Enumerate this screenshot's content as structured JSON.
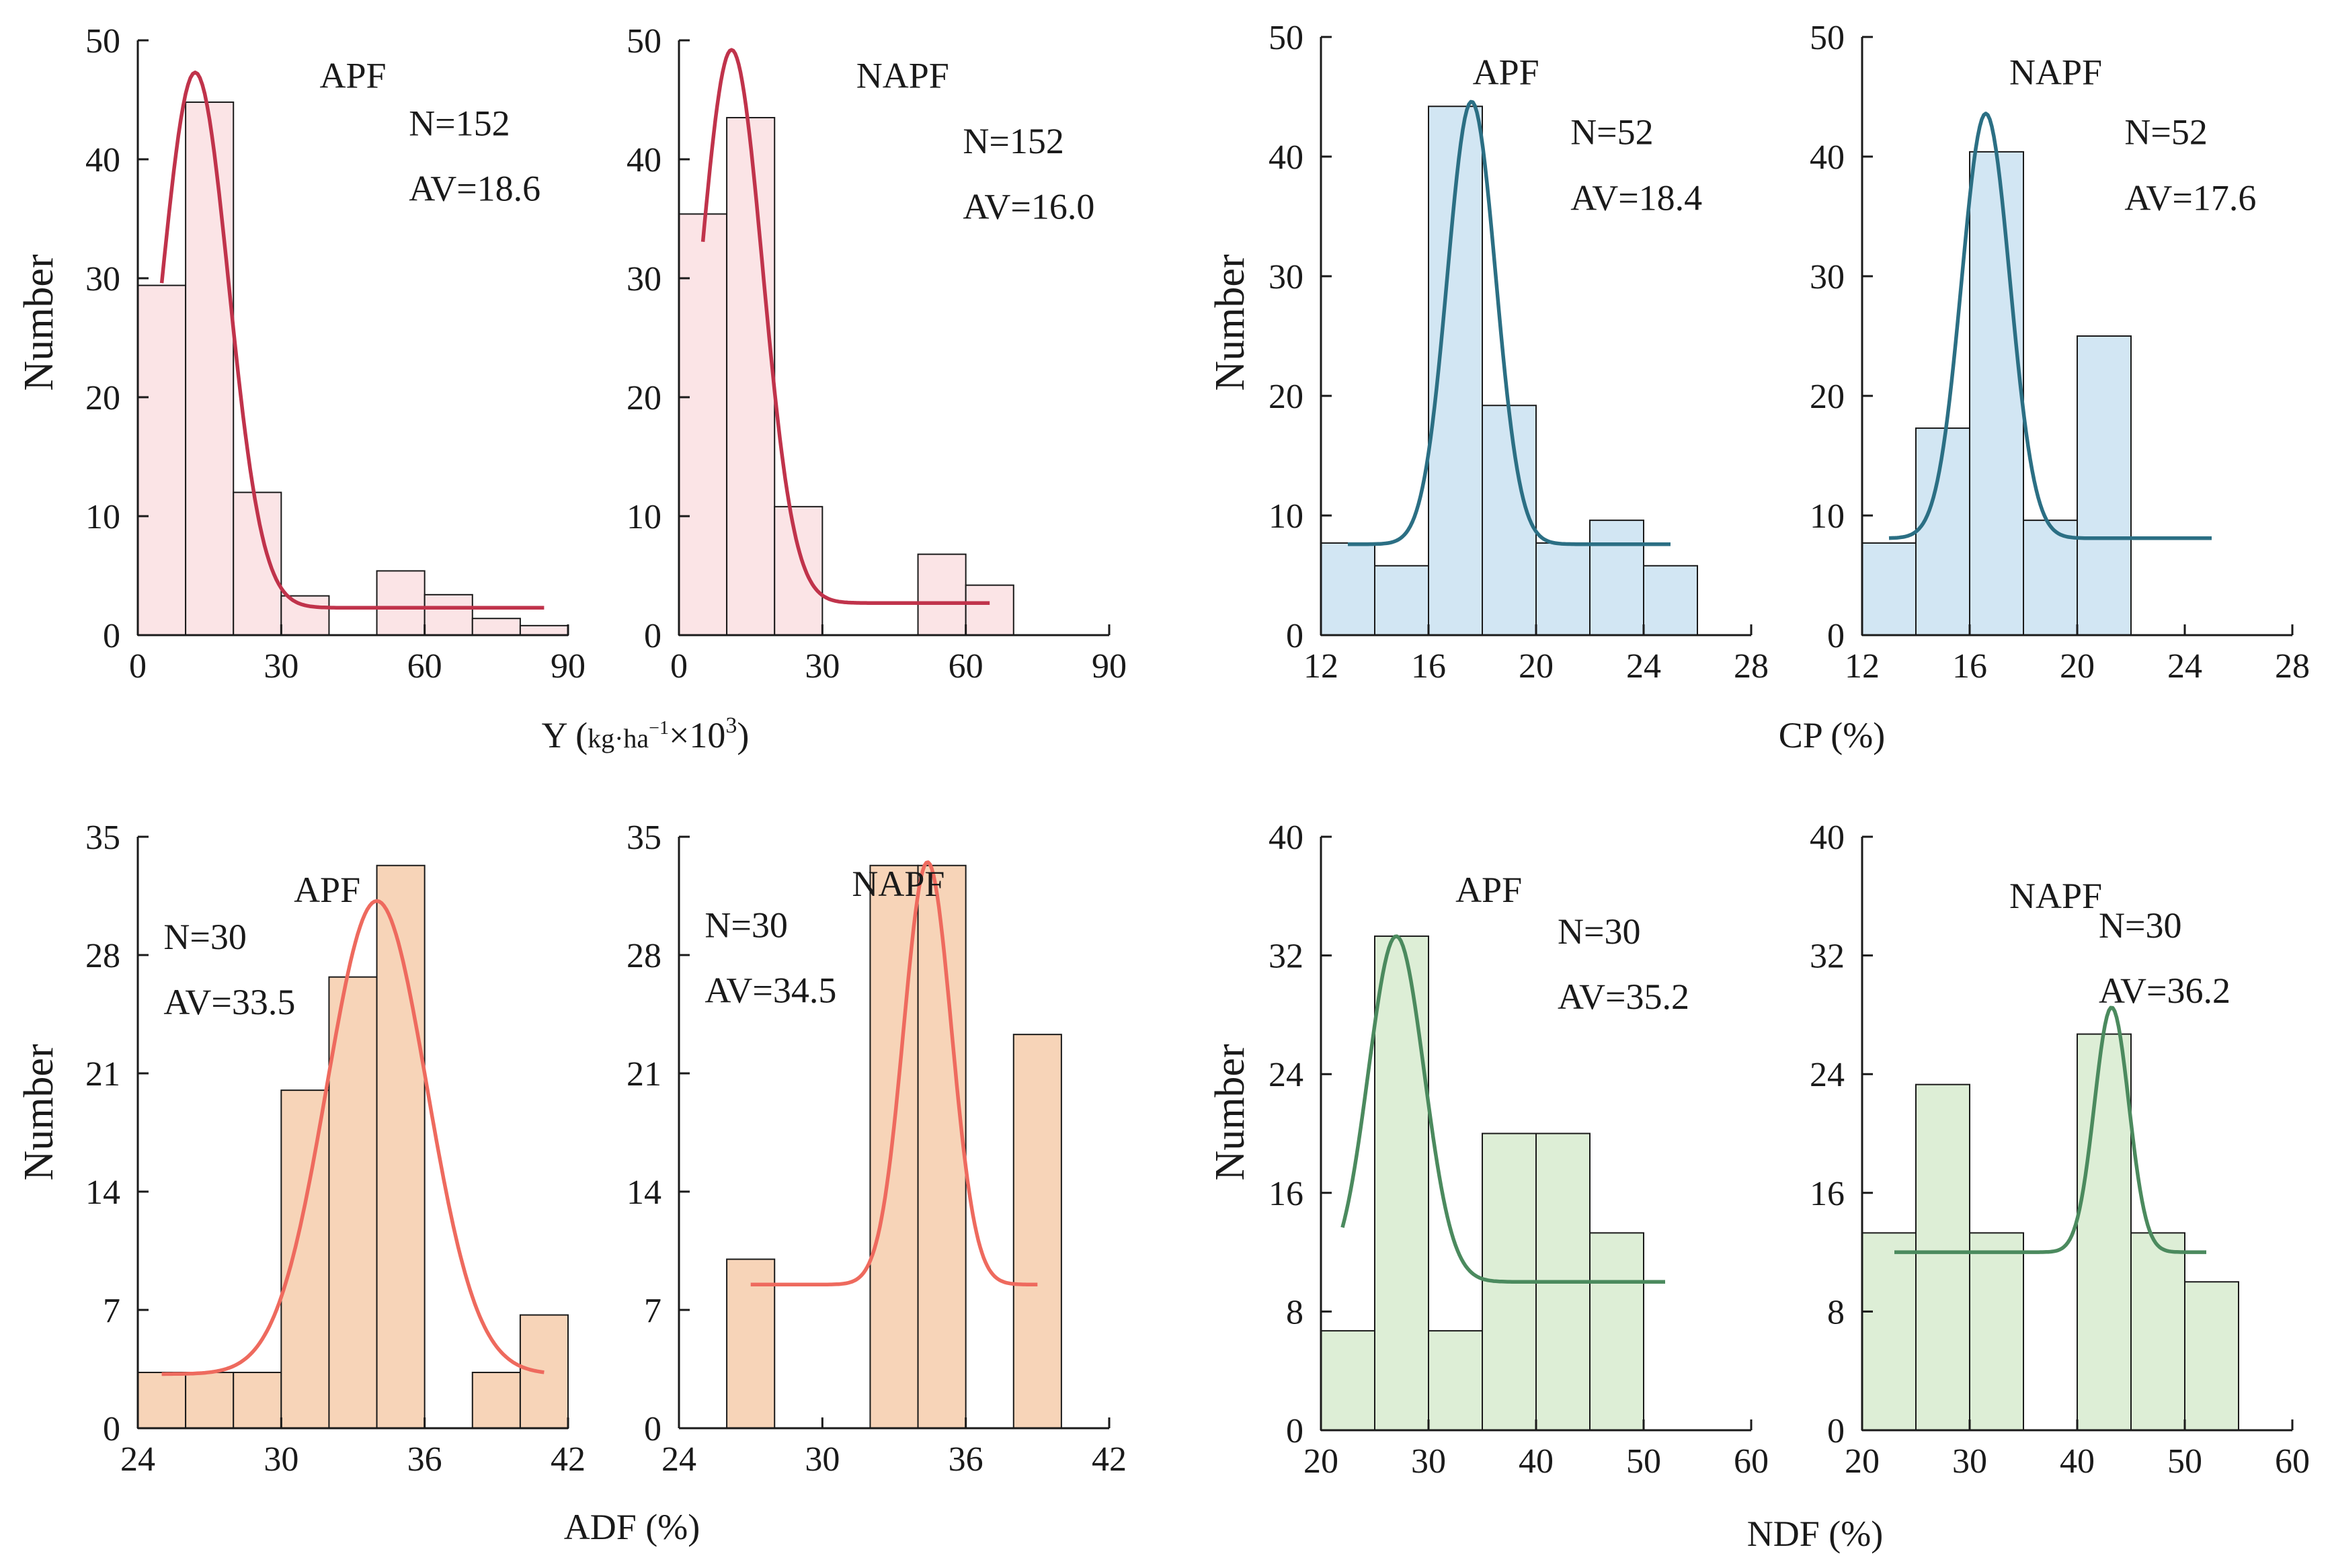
{
  "figure": {
    "ylabel_left": "Number",
    "row1_left_xlabel": "Y (kg·ha⁻¹×10³)",
    "row1_left_xlabel_main": "Y (",
    "row1_left_xlabel_unit": "kg·ha",
    "row1_left_xlabel_exp1": "−1",
    "row1_left_xlabel_mid": "×10",
    "row1_left_xlabel_exp2": "3",
    "row1_left_xlabel_close": ")",
    "row1_right_xlabel": "CP (%)",
    "row2_left_xlabel": "ADF (%)",
    "row2_right_xlabel": "NDF (%)"
  },
  "colors": {
    "Y_fill": "#fbe4e6",
    "Y_curve": "#c0334b",
    "CP_fill": "#d2e6f3",
    "CP_curve": "#2b6f84",
    "ADF_fill": "#f7d4b8",
    "ADF_curve": "#ee6a5e",
    "NDF_fill": "#ddeed6",
    "NDF_curve": "#4b8a5e"
  },
  "chart_data": [
    {
      "id": "Y_APF",
      "type": "bar",
      "group": "APF",
      "variable": "Y",
      "n_label": "N=152",
      "av_label": "AV=18.6",
      "xlim": [
        0,
        90
      ],
      "ylim": [
        0,
        50
      ],
      "xticks": [
        0,
        30,
        60,
        90
      ],
      "yticks": [
        0,
        10,
        20,
        30,
        40,
        50
      ],
      "bins": [
        [
          0,
          10,
          29.4
        ],
        [
          10,
          20,
          44.8
        ],
        [
          20,
          30,
          12.0
        ],
        [
          30,
          40,
          3.3
        ],
        [
          50,
          60,
          5.4
        ],
        [
          60,
          70,
          3.4
        ],
        [
          70,
          80,
          1.4
        ],
        [
          80,
          90,
          0.8
        ]
      ],
      "curve": {
        "mu": 12,
        "sigma": 7,
        "amp": 45,
        "base": 2.3,
        "xmin": 5,
        "xmax": 85
      },
      "fill": "#fbe4e6",
      "line": "#c0334b"
    },
    {
      "id": "Y_NAPF",
      "type": "bar",
      "group": "NAPF",
      "variable": "Y",
      "n_label": "N=152",
      "av_label": "AV=16.0",
      "xlim": [
        0,
        90
      ],
      "ylim": [
        0,
        50
      ],
      "xticks": [
        0,
        30,
        60,
        90
      ],
      "yticks": [
        0,
        10,
        20,
        30,
        40,
        50
      ],
      "bins": [
        [
          0,
          10,
          35.4
        ],
        [
          10,
          20,
          43.5
        ],
        [
          20,
          30,
          10.8
        ],
        [
          50,
          60,
          6.8
        ],
        [
          60,
          70,
          4.2
        ]
      ],
      "curve": {
        "mu": 11,
        "sigma": 6.5,
        "amp": 46.5,
        "base": 2.7,
        "xmin": 5,
        "xmax": 65
      },
      "fill": "#fbe4e6",
      "line": "#c0334b"
    },
    {
      "id": "CP_APF",
      "type": "bar",
      "group": "APF",
      "variable": "CP",
      "n_label": "N=52",
      "av_label": "AV=18.4",
      "xlim": [
        12,
        28
      ],
      "ylim": [
        0,
        50
      ],
      "xticks": [
        12,
        16,
        20,
        24,
        28
      ],
      "yticks": [
        0,
        10,
        20,
        30,
        40,
        50
      ],
      "bins": [
        [
          12,
          14,
          7.7
        ],
        [
          14,
          16,
          5.8
        ],
        [
          16,
          18,
          44.2
        ],
        [
          18,
          20,
          19.2
        ],
        [
          20,
          22,
          7.7
        ],
        [
          22,
          24,
          9.6
        ],
        [
          24,
          26,
          5.8
        ]
      ],
      "curve": {
        "mu": 17.6,
        "sigma": 0.9,
        "amp": 37,
        "base": 7.6,
        "xmin": 13,
        "xmax": 25
      },
      "fill": "#d2e6f3",
      "line": "#2b6f84"
    },
    {
      "id": "CP_NAPF",
      "type": "bar",
      "group": "NAPF",
      "variable": "CP",
      "n_label": "N=52",
      "av_label": "AV=17.6",
      "xlim": [
        12,
        28
      ],
      "ylim": [
        0,
        50
      ],
      "xticks": [
        12,
        16,
        20,
        24,
        28
      ],
      "yticks": [
        0,
        10,
        20,
        30,
        40,
        50
      ],
      "bins": [
        [
          12,
          14,
          7.7
        ],
        [
          14,
          16,
          17.3
        ],
        [
          16,
          18,
          40.4
        ],
        [
          18,
          20,
          9.6
        ],
        [
          20,
          22,
          25.0
        ]
      ],
      "curve": {
        "mu": 16.6,
        "sigma": 0.9,
        "amp": 35.5,
        "base": 8.1,
        "xmin": 13,
        "xmax": 25
      },
      "fill": "#d2e6f3",
      "line": "#2b6f84"
    },
    {
      "id": "ADF_APF",
      "type": "bar",
      "group": "APF",
      "variable": "ADF",
      "n_label": "N=30",
      "av_label": "AV=33.5",
      "xlim": [
        24,
        42
      ],
      "ylim": [
        0,
        35
      ],
      "xticks": [
        24,
        30,
        36,
        42
      ],
      "yticks": [
        0,
        7,
        14,
        21,
        28,
        35
      ],
      "bins": [
        [
          24,
          26,
          3.3
        ],
        [
          26,
          28,
          3.3
        ],
        [
          28,
          30,
          3.3
        ],
        [
          30,
          32,
          20.0
        ],
        [
          32,
          34,
          26.7
        ],
        [
          34,
          36,
          33.3
        ],
        [
          38,
          40,
          3.3
        ],
        [
          40,
          42,
          6.7
        ]
      ],
      "curve": {
        "mu": 34,
        "sigma": 2.1,
        "amp": 28,
        "base": 3.2,
        "xmin": 25,
        "xmax": 41
      },
      "fill": "#f7d4b8",
      "line": "#ee6a5e"
    },
    {
      "id": "ADF_NAPF",
      "type": "bar",
      "group": "NAPF",
      "variable": "ADF",
      "n_label": "N=30",
      "av_label": "AV=34.5",
      "xlim": [
        24,
        42
      ],
      "ylim": [
        0,
        35
      ],
      "xticks": [
        24,
        30,
        36,
        42
      ],
      "yticks": [
        0,
        7,
        14,
        21,
        28,
        35
      ],
      "bins": [
        [
          26,
          28,
          10.0
        ],
        [
          32,
          34,
          33.3
        ],
        [
          34,
          36,
          33.3
        ],
        [
          38,
          40,
          23.3
        ]
      ],
      "curve": {
        "mu": 34.4,
        "sigma": 1.0,
        "amp": 25,
        "base": 8.5,
        "xmin": 27,
        "xmax": 39
      },
      "fill": "#f7d4b8",
      "line": "#ee6a5e"
    },
    {
      "id": "NDF_APF",
      "type": "bar",
      "group": "APF",
      "variable": "NDF",
      "n_label": "N=30",
      "av_label": "AV=35.2",
      "xlim": [
        20,
        60
      ],
      "ylim": [
        0,
        40
      ],
      "xticks": [
        20,
        30,
        40,
        50,
        60
      ],
      "yticks": [
        0,
        8,
        16,
        24,
        32,
        40
      ],
      "bins": [
        [
          20,
          25,
          6.7
        ],
        [
          25,
          30,
          33.3
        ],
        [
          30,
          35,
          6.7
        ],
        [
          35,
          40,
          20.0
        ],
        [
          40,
          45,
          20.0
        ],
        [
          45,
          50,
          13.3
        ]
      ],
      "curve": {
        "mu": 27,
        "sigma": 2.6,
        "amp": 23.3,
        "base": 10,
        "xmin": 22,
        "xmax": 52
      },
      "fill": "#ddeed6",
      "line": "#4b8a5e"
    },
    {
      "id": "NDF_NAPF",
      "type": "bar",
      "group": "NAPF",
      "variable": "NDF",
      "n_label": "N=30",
      "av_label": "AV=36.2",
      "xlim": [
        20,
        60
      ],
      "ylim": [
        0,
        40
      ],
      "xticks": [
        20,
        30,
        40,
        50,
        60
      ],
      "yticks": [
        0,
        8,
        16,
        24,
        32,
        40
      ],
      "bins": [
        [
          20,
          25,
          13.3
        ],
        [
          25,
          30,
          23.3
        ],
        [
          30,
          35,
          13.3
        ],
        [
          40,
          45,
          26.7
        ],
        [
          45,
          50,
          13.3
        ],
        [
          50,
          55,
          10.0
        ]
      ],
      "curve": {
        "mu": 43.2,
        "sigma": 1.6,
        "amp": 16.5,
        "base": 12,
        "xmin": 23,
        "xmax": 52
      },
      "fill": "#ddeed6",
      "line": "#4b8a5e"
    }
  ]
}
